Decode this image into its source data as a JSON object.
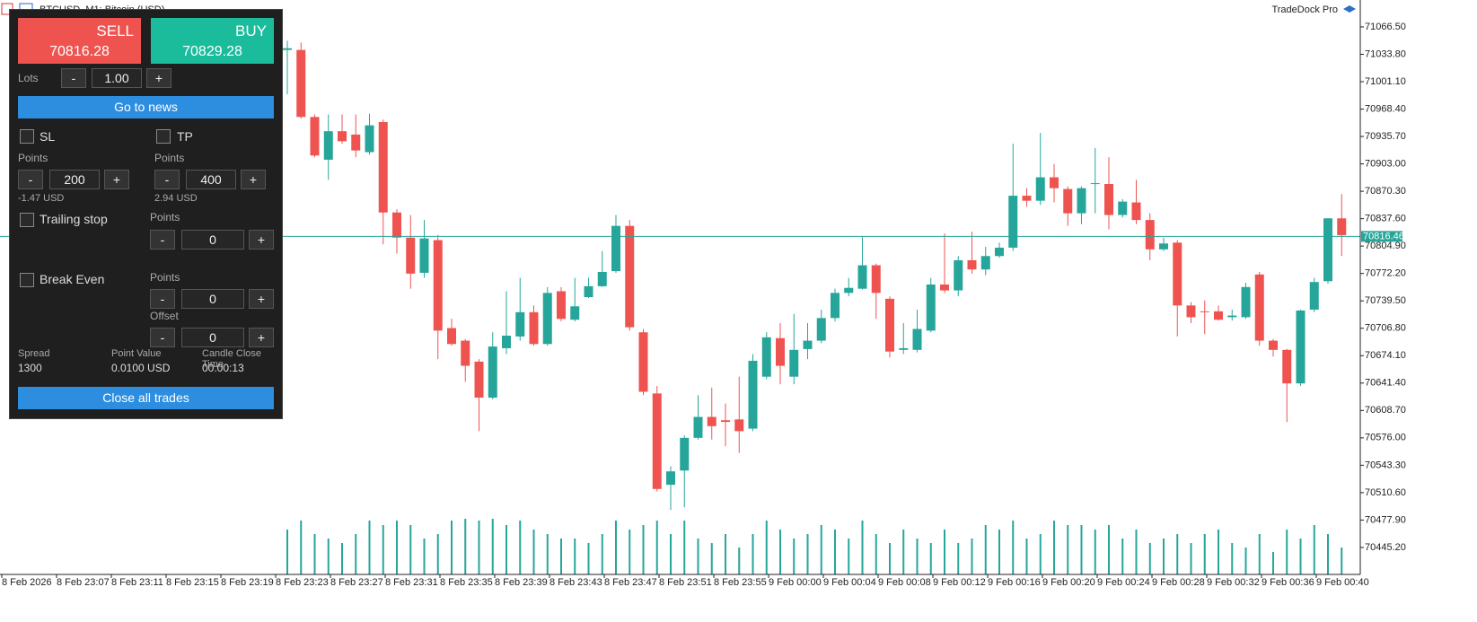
{
  "window": {
    "title": "BTCUSD, M1: Bitcoin (USD)",
    "brand": "TradeDock Pro"
  },
  "panel": {
    "minus": "-",
    "plus": "+",
    "sell": {
      "label": "SELL",
      "price": "70816.28"
    },
    "buy": {
      "label": "BUY",
      "price": "70829.28"
    },
    "lots": {
      "label": "Lots",
      "value": "1.00"
    },
    "news_button": "Go to news",
    "sl": {
      "label": "SL",
      "points_label": "Points",
      "value": "200",
      "usd": "-1.47 USD"
    },
    "tp": {
      "label": "TP",
      "points_label": "Points",
      "value": "400",
      "usd": "2.94 USD"
    },
    "trailing": {
      "label": "Trailing stop",
      "points_label": "Points",
      "value": "0"
    },
    "break_even": {
      "label": "Break Even",
      "points_label": "Points",
      "value": "0",
      "offset_label": "Offset",
      "offset_value": "0"
    },
    "stats": [
      {
        "label": "Spread",
        "value": "1300"
      },
      {
        "label": "Point Value",
        "value": "0.0100 USD"
      },
      {
        "label": "Candle Close Time",
        "value": "00:00:13"
      }
    ],
    "close_button": "Close all trades"
  },
  "chart_data": {
    "type": "candlestick",
    "up_color": "#26a69a",
    "down_color": "#ef5350",
    "volume_color": "#26a69a",
    "ylim": [
      70413.0,
      71098.6
    ],
    "yticks": [
      {
        "value": 71066.5,
        "label": "71066.50"
      },
      {
        "value": 71033.8,
        "label": "71033.80"
      },
      {
        "value": 71001.1,
        "label": "71001.10"
      },
      {
        "value": 70968.4,
        "label": "70968.40"
      },
      {
        "value": 70935.7,
        "label": "70935.70"
      },
      {
        "value": 70903,
        "label": "70903.00"
      },
      {
        "value": 70870.3,
        "label": "70870.30"
      },
      {
        "value": 70837.6,
        "label": "70837.60"
      },
      {
        "value": 70804.9,
        "label": "70804.90"
      },
      {
        "value": 70772.2,
        "label": "70772.20"
      },
      {
        "value": 70739.5,
        "label": "70739.50"
      },
      {
        "value": 70706.8,
        "label": "70706.80"
      },
      {
        "value": 70674.1,
        "label": "70674.10"
      },
      {
        "value": 70641.4,
        "label": "70641.40"
      },
      {
        "value": 70608.7,
        "label": "70608.70"
      },
      {
        "value": 70576,
        "label": "70576.00"
      },
      {
        "value": 70543.3,
        "label": "70543.30"
      },
      {
        "value": 70510.6,
        "label": "70510.60"
      },
      {
        "value": 70477.9,
        "label": "70477.90"
      },
      {
        "value": 70445.2,
        "label": "70445.20"
      }
    ],
    "current_price": 70816.46,
    "x_labels": [
      "8 Feb 2026",
      "8 Feb 23:07",
      "8 Feb 23:11",
      "8 Feb 23:15",
      "8 Feb 23:19",
      "8 Feb 23:23",
      "8 Feb 23:27",
      "8 Feb 23:31",
      "8 Feb 23:35",
      "8 Feb 23:39",
      "8 Feb 23:43",
      "8 Feb 23:47",
      "8 Feb 23:51",
      "8 Feb 23:55",
      "9 Feb 00:00",
      "9 Feb 00:04",
      "9 Feb 00:08",
      "9 Feb 00:12",
      "9 Feb 00:16",
      "9 Feb 00:20",
      "9 Feb 00:24",
      "9 Feb 00:28",
      "9 Feb 00:32",
      "9 Feb 00:36",
      "9 Feb 00:40"
    ],
    "candles": [
      [
        71039,
        71050,
        70986,
        71041
      ],
      [
        71039,
        71048,
        70957,
        70959
      ],
      [
        70959,
        70962,
        70911,
        70913
      ],
      [
        70908,
        70962,
        70884,
        70942
      ],
      [
        70942,
        70962,
        70927,
        70930
      ],
      [
        70938,
        70962,
        70911,
        70919
      ],
      [
        70917,
        70963,
        70914,
        70949
      ],
      [
        70953,
        70956,
        70807,
        70845
      ],
      [
        70845,
        70849,
        70796,
        70815
      ],
      [
        70815,
        70842,
        70754,
        70772
      ],
      [
        70773,
        70836,
        70767,
        70814
      ],
      [
        70812,
        70818,
        70670,
        70704
      ],
      [
        70707,
        70718,
        70686,
        70688
      ],
      [
        70692,
        70694,
        70643,
        70662
      ],
      [
        70667,
        70670,
        70584,
        70624
      ],
      [
        70624,
        70702,
        70622,
        70685
      ],
      [
        70683,
        70751,
        70676,
        70698
      ],
      [
        70697,
        70767,
        70692,
        70726
      ],
      [
        70726,
        70734,
        70686,
        70688
      ],
      [
        70688,
        70756,
        70686,
        70749
      ],
      [
        70751,
        70756,
        70715,
        70718
      ],
      [
        70717,
        70767,
        70715,
        70733
      ],
      [
        70744,
        70767,
        70743,
        70757
      ],
      [
        70757,
        70799,
        70756,
        70774
      ],
      [
        70775,
        70842,
        70773,
        70829
      ],
      [
        70829,
        70836,
        70704,
        70708
      ],
      [
        70702,
        70706,
        70627,
        70631
      ],
      [
        70629,
        70638,
        70512,
        70515
      ],
      [
        70520,
        70542,
        70490,
        70536
      ],
      [
        70537,
        70579,
        70493,
        70576
      ],
      [
        70576,
        70627,
        70574,
        70601
      ],
      [
        70601,
        70636,
        70574,
        70590
      ],
      [
        70597,
        70617,
        70566,
        70595
      ],
      [
        70598,
        70649,
        70558,
        70584
      ],
      [
        70587,
        70676,
        70584,
        70668
      ],
      [
        70649,
        70702,
        70646,
        70696
      ],
      [
        70695,
        70713,
        70640,
        70662
      ],
      [
        70649,
        70724,
        70640,
        70681
      ],
      [
        70682,
        70713,
        70670,
        70692
      ],
      [
        70692,
        70729,
        70689,
        70719
      ],
      [
        70719,
        70754,
        70715,
        70749
      ],
      [
        70749,
        70767,
        70745,
        70755
      ],
      [
        70754,
        70816,
        70753,
        70782
      ],
      [
        70782,
        70784,
        70718,
        70749
      ],
      [
        70742,
        70745,
        70672,
        70679
      ],
      [
        70681,
        70713,
        70676,
        70683
      ],
      [
        70681,
        70729,
        70678,
        70706
      ],
      [
        70704,
        70767,
        70702,
        70759
      ],
      [
        70759,
        70820,
        70749,
        70752
      ],
      [
        70752,
        70793,
        70745,
        70788
      ],
      [
        70788,
        70822,
        70772,
        70777
      ],
      [
        70777,
        70804,
        70770,
        70793
      ],
      [
        70793,
        70809,
        70791,
        70803
      ],
      [
        70803,
        70927,
        70799,
        70865
      ],
      [
        70865,
        70874,
        70852,
        70859
      ],
      [
        70859,
        70940,
        70854,
        70887
      ],
      [
        70887,
        70903,
        70857,
        70874
      ],
      [
        70873,
        70876,
        70829,
        70844
      ],
      [
        70844,
        70876,
        70831,
        70874
      ],
      [
        70879,
        70922,
        70844,
        70880
      ],
      [
        70879,
        70911,
        70825,
        70842
      ],
      [
        70842,
        70861,
        70839,
        70858
      ],
      [
        70857,
        70884,
        70831,
        70836
      ],
      [
        70836,
        70844,
        70788,
        70801
      ],
      [
        70801,
        70815,
        70799,
        70808
      ],
      [
        70809,
        70812,
        70697,
        70734
      ],
      [
        70734,
        70738,
        70713,
        70720
      ],
      [
        70727,
        70740,
        70700,
        70726
      ],
      [
        70727,
        70734,
        70716,
        70717
      ],
      [
        70720,
        70729,
        70716,
        70722
      ],
      [
        70720,
        70761,
        70718,
        70756
      ],
      [
        70771,
        70774,
        70686,
        70692
      ],
      [
        70692,
        70694,
        70673,
        70681
      ],
      [
        70681,
        70682,
        70595,
        70641
      ],
      [
        70641,
        70729,
        70638,
        70728
      ],
      [
        70729,
        70767,
        70726,
        70762
      ],
      [
        70763,
        70838,
        70760,
        70838
      ],
      [
        70838,
        70867,
        70793,
        70818
      ]
    ],
    "volumes": [
      50,
      60,
      45,
      40,
      35,
      45,
      60,
      55,
      60,
      55,
      40,
      45,
      60,
      62,
      60,
      62,
      55,
      60,
      50,
      45,
      40,
      40,
      35,
      45,
      60,
      50,
      55,
      60,
      45,
      60,
      40,
      35,
      45,
      30,
      45,
      60,
      50,
      40,
      45,
      55,
      50,
      40,
      60,
      45,
      35,
      50,
      40,
      35,
      50,
      35,
      40,
      55,
      50,
      60,
      40,
      45,
      60,
      55,
      55,
      50,
      55,
      40,
      50,
      35,
      40,
      45,
      35,
      45,
      50,
      35,
      30,
      45,
      25,
      50,
      40,
      55,
      45,
      30
    ]
  }
}
